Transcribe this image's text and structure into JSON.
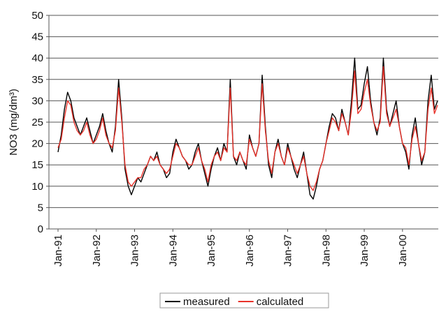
{
  "chart_data": {
    "type": "line",
    "y_label": "NO3 (mg/dm³)",
    "categories": [
      "Jan-91",
      null,
      null,
      null,
      null,
      null,
      null,
      null,
      null,
      null,
      null,
      null,
      "Jan-92",
      null,
      null,
      null,
      null,
      null,
      null,
      null,
      null,
      null,
      null,
      null,
      "Jan-93",
      null,
      null,
      null,
      null,
      null,
      null,
      null,
      null,
      null,
      null,
      null,
      "Jan-94",
      null,
      null,
      null,
      null,
      null,
      null,
      null,
      null,
      null,
      null,
      null,
      "Jan-95",
      null,
      null,
      null,
      null,
      null,
      null,
      null,
      null,
      null,
      null,
      null,
      "Jan-96",
      null,
      null,
      null,
      null,
      null,
      null,
      null,
      null,
      null,
      null,
      null,
      "Jan-97",
      null,
      null,
      null,
      null,
      null,
      null,
      null,
      null,
      null,
      null,
      null,
      "Jan-98",
      null,
      null,
      null,
      null,
      null,
      null,
      null,
      null,
      null,
      null,
      null,
      "Jan-99",
      null,
      null,
      null,
      null,
      null,
      null,
      null,
      null,
      null,
      null,
      null,
      "Jan-00",
      null,
      null,
      null,
      null,
      null,
      null,
      null,
      null,
      null,
      null,
      null
    ],
    "series": [
      {
        "name": "measured",
        "color": "#000000",
        "values": [
          18,
          22,
          28,
          32,
          30,
          26,
          24,
          22,
          24,
          26,
          23,
          20,
          22,
          24,
          27,
          23,
          20,
          18,
          24,
          35,
          26,
          14,
          10,
          8,
          10,
          12,
          11,
          13,
          15,
          17,
          16,
          18,
          15,
          14,
          12,
          13,
          18,
          21,
          19,
          17,
          16,
          14,
          15,
          18,
          20,
          16,
          13,
          10,
          14,
          17,
          19,
          16,
          20,
          18,
          35,
          17,
          15,
          18,
          16,
          14,
          22,
          19,
          17,
          20,
          36,
          24,
          15,
          12,
          18,
          21,
          17,
          15,
          20,
          17,
          14,
          12,
          15,
          18,
          13,
          8,
          7,
          10,
          14,
          16,
          20,
          24,
          27,
          26,
          23,
          28,
          25,
          22,
          30,
          40,
          28,
          29,
          34,
          38,
          30,
          25,
          22,
          26,
          40,
          28,
          24,
          27,
          30,
          24,
          20,
          18,
          14,
          22,
          26,
          20,
          15,
          18,
          30,
          36,
          28,
          30
        ]
      },
      {
        "name": "calculated",
        "color": "#e8322a",
        "values": [
          19,
          21,
          26,
          30,
          29,
          25,
          23,
          22,
          23,
          25,
          22,
          20,
          21,
          23,
          26,
          22,
          20,
          19,
          23,
          33,
          25,
          15,
          11,
          10,
          11,
          12,
          12,
          14,
          15,
          17,
          16,
          17,
          15,
          14,
          13,
          14,
          17,
          20,
          19,
          17,
          16,
          15,
          15,
          17,
          19,
          16,
          14,
          11,
          15,
          17,
          18,
          16,
          19,
          18,
          33,
          17,
          16,
          18,
          16,
          15,
          21,
          19,
          17,
          20,
          34,
          23,
          16,
          13,
          18,
          20,
          17,
          15,
          19,
          17,
          15,
          13,
          15,
          17,
          13,
          10,
          9,
          11,
          14,
          16,
          20,
          23,
          26,
          25,
          23,
          27,
          25,
          22,
          28,
          37,
          27,
          28,
          32,
          35,
          29,
          25,
          23,
          25,
          38,
          27,
          24,
          26,
          28,
          24,
          20,
          19,
          15,
          21,
          24,
          20,
          16,
          18,
          28,
          33,
          27,
          29
        ]
      }
    ],
    "ylim": [
      0,
      50
    ],
    "yticks": [
      0,
      5,
      10,
      15,
      20,
      25,
      30,
      35,
      40,
      45,
      50
    ],
    "grid": true,
    "legend": "bottom"
  }
}
